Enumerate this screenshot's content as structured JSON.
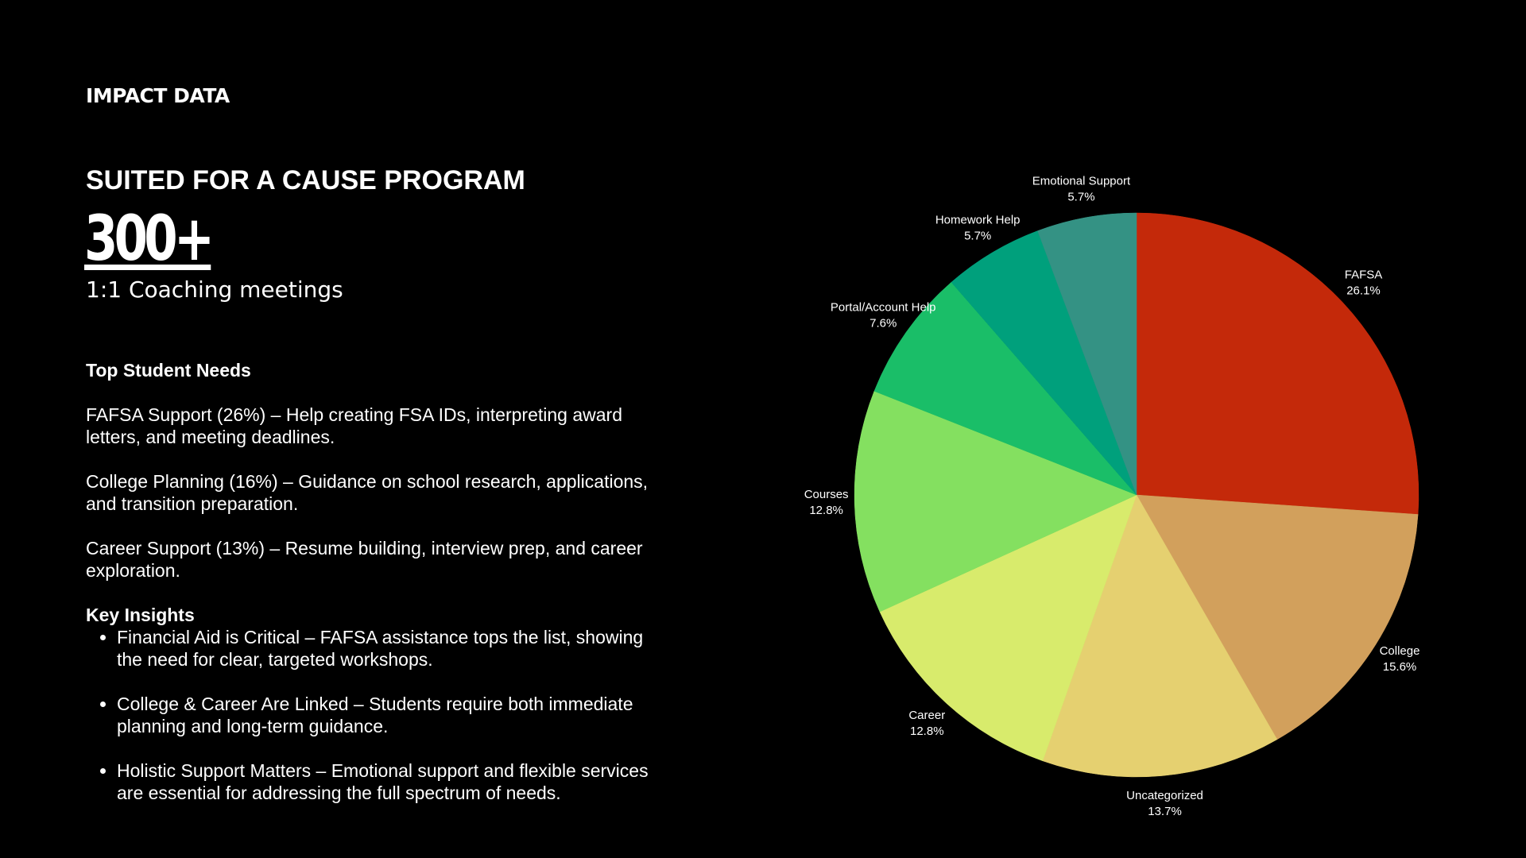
{
  "header": {
    "label": "IMPACT DATA"
  },
  "program": {
    "title": "SUITED FOR A CAUSE PROGRAM"
  },
  "stat": {
    "value": "300+",
    "caption": "1:1 Coaching meetings"
  },
  "needs": {
    "heading": "Top Student Needs",
    "items": [
      "FAFSA Support (26%) – Help creating FSA IDs, interpreting award letters, and meeting deadlines.",
      "College Planning (16%) – Guidance on school research, applications, and transition preparation.",
      "Career Support (13%) – Resume building, interview prep, and career exploration."
    ]
  },
  "insights": {
    "heading": "Key Insights",
    "items": [
      "Financial Aid is Critical – FAFSA assistance tops the list, showing the need for clear, targeted workshops.",
      "College & Career Are Linked – Students require both immediate planning and long-term guidance.",
      "Holistic Support Matters – Emotional support and flexible services are essential for addressing the full spectrum of needs."
    ]
  },
  "chart_data": {
    "type": "pie",
    "categories": [
      "FAFSA",
      "College",
      "Uncategorized",
      "Career",
      "Courses",
      "Portal/Account Help",
      "Homework Help",
      "Emotional Support"
    ],
    "values": [
      26.1,
      15.6,
      13.7,
      12.8,
      12.8,
      7.6,
      5.7,
      5.7
    ],
    "value_labels": [
      "26.1%",
      "15.6%",
      "13.7%",
      "12.8%",
      "12.8%",
      "7.6%",
      "5.7%",
      "5.7%"
    ],
    "colors": [
      "#c4290a",
      "#d2a05c",
      "#e5d070",
      "#d8eb6c",
      "#84e060",
      "#1abe68",
      "#00a07c",
      "#349284"
    ]
  }
}
